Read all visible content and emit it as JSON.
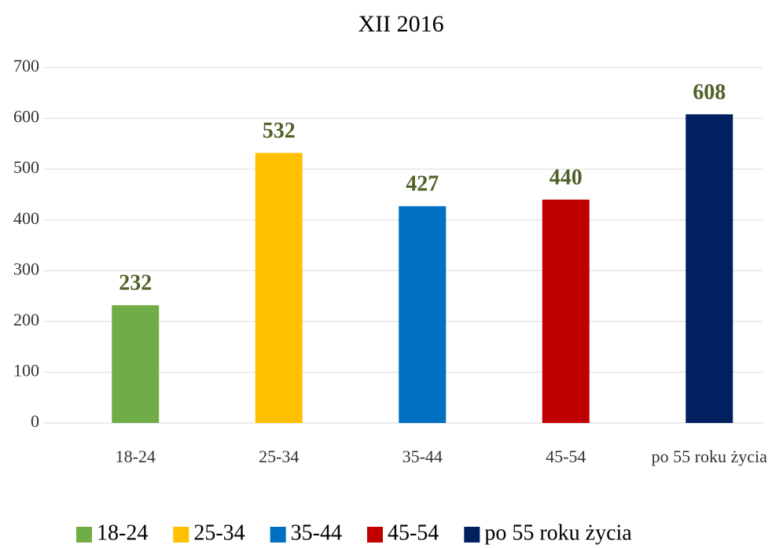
{
  "chart_data": {
    "type": "bar",
    "title": "XII 2016",
    "categories": [
      "18-24",
      "25-34",
      "35-44",
      "45-54",
      "po 55 roku życia"
    ],
    "values": [
      232,
      532,
      427,
      440,
      608
    ],
    "colors": [
      "#70ad47",
      "#ffc000",
      "#0070c0",
      "#c00000",
      "#002060"
    ],
    "ylim": [
      0,
      700
    ],
    "yticks": [
      0,
      100,
      200,
      300,
      400,
      500,
      600,
      700
    ],
    "grid": true,
    "legend": "bottom"
  }
}
